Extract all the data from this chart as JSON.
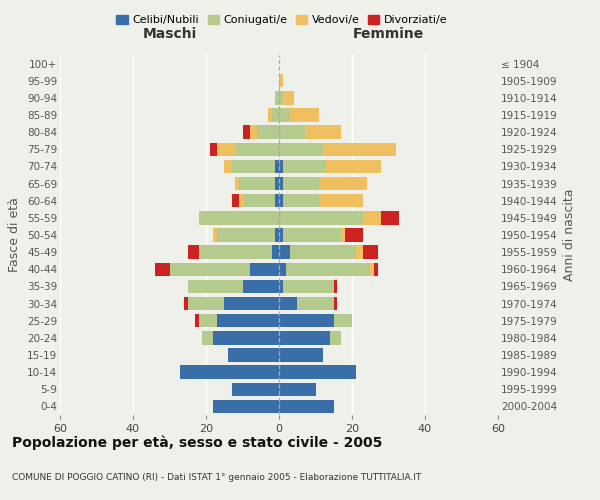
{
  "age_groups": [
    "0-4",
    "5-9",
    "10-14",
    "15-19",
    "20-24",
    "25-29",
    "30-34",
    "35-39",
    "40-44",
    "45-49",
    "50-54",
    "55-59",
    "60-64",
    "65-69",
    "70-74",
    "75-79",
    "80-84",
    "85-89",
    "90-94",
    "95-99",
    "100+"
  ],
  "birth_years": [
    "2000-2004",
    "1995-1999",
    "1990-1994",
    "1985-1989",
    "1980-1984",
    "1975-1979",
    "1970-1974",
    "1965-1969",
    "1960-1964",
    "1955-1959",
    "1950-1954",
    "1945-1949",
    "1940-1944",
    "1935-1939",
    "1930-1934",
    "1925-1929",
    "1920-1924",
    "1915-1919",
    "1910-1914",
    "1905-1909",
    "≤ 1904"
  ],
  "maschi": {
    "celibi": [
      18,
      13,
      27,
      14,
      18,
      17,
      15,
      10,
      8,
      2,
      1,
      0,
      1,
      1,
      1,
      0,
      0,
      0,
      0,
      0,
      0
    ],
    "coniugati": [
      0,
      0,
      0,
      0,
      3,
      5,
      10,
      15,
      22,
      20,
      16,
      22,
      9,
      10,
      12,
      12,
      6,
      2,
      1,
      0,
      0
    ],
    "vedovi": [
      0,
      0,
      0,
      0,
      0,
      0,
      0,
      0,
      0,
      0,
      1,
      0,
      1,
      1,
      2,
      5,
      2,
      1,
      0,
      0,
      0
    ],
    "divorziati": [
      0,
      0,
      0,
      0,
      0,
      1,
      1,
      0,
      4,
      3,
      0,
      0,
      2,
      0,
      0,
      2,
      2,
      0,
      0,
      0,
      0
    ]
  },
  "femmine": {
    "nubili": [
      15,
      10,
      21,
      12,
      14,
      15,
      5,
      1,
      2,
      3,
      1,
      0,
      1,
      1,
      1,
      0,
      0,
      0,
      0,
      0,
      0
    ],
    "coniugate": [
      0,
      0,
      0,
      0,
      3,
      5,
      10,
      14,
      23,
      18,
      16,
      23,
      10,
      10,
      12,
      12,
      7,
      3,
      1,
      0,
      0
    ],
    "vedove": [
      0,
      0,
      0,
      0,
      0,
      0,
      0,
      0,
      1,
      2,
      1,
      5,
      12,
      13,
      15,
      20,
      10,
      8,
      3,
      1,
      0
    ],
    "divorziate": [
      0,
      0,
      0,
      0,
      0,
      0,
      1,
      1,
      1,
      4,
      5,
      5,
      0,
      0,
      0,
      0,
      0,
      0,
      0,
      0,
      0
    ]
  },
  "colors": {
    "celibi": "#3a6ea8",
    "coniugati": "#b5ca8d",
    "vedovi": "#f0c060",
    "divorziati": "#cc2222"
  },
  "xlim": 60,
  "title": "Popolazione per età, sesso e stato civile - 2005",
  "subtitle": "COMUNE DI POGGIO CATINO (RI) - Dati ISTAT 1° gennaio 2005 - Elaborazione TUTTITALIA.IT",
  "xlabel_left": "Maschi",
  "xlabel_right": "Femmine",
  "ylabel_left": "Fasce di età",
  "ylabel_right": "Anni di nascita",
  "legend_labels": [
    "Celibi/Nubili",
    "Coniugati/e",
    "Vedovi/e",
    "Divorziati/e"
  ],
  "background_color": "#f0f0eb"
}
